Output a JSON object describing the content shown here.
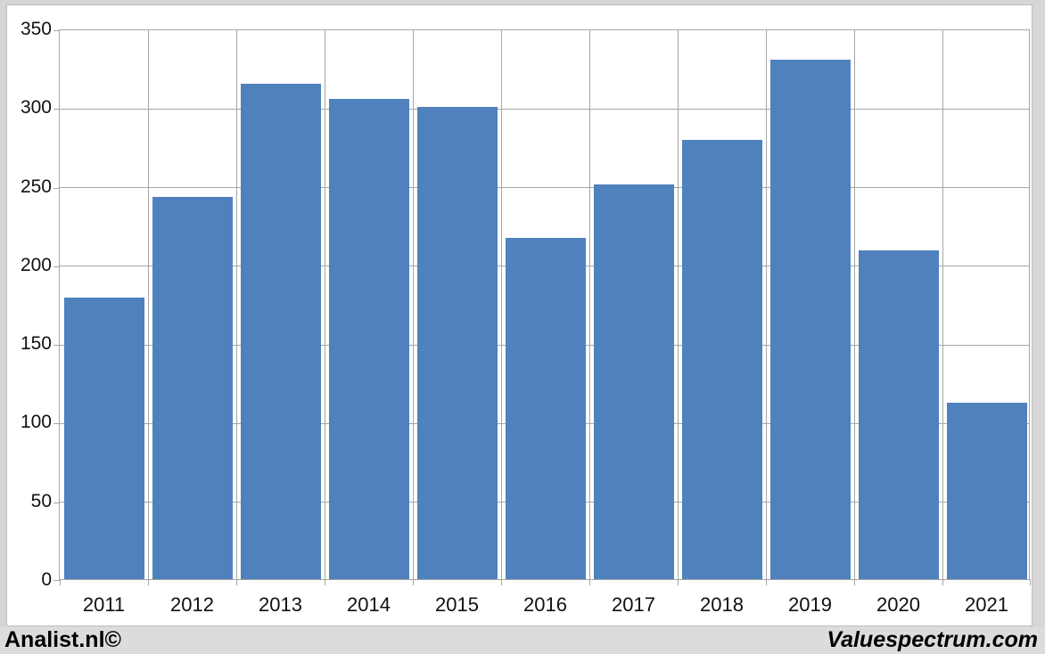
{
  "chart_data": {
    "type": "bar",
    "title": "",
    "xlabel": "",
    "ylabel": "",
    "categories": [
      "2011",
      "2012",
      "2013",
      "2014",
      "2015",
      "2016",
      "2017",
      "2018",
      "2019",
      "2020",
      "2021"
    ],
    "values": [
      179,
      243,
      315,
      305,
      300,
      217,
      251,
      279,
      330,
      209,
      112
    ],
    "ylim": [
      0,
      350
    ],
    "ytick_step": 50,
    "yticks": [
      0,
      50,
      100,
      150,
      200,
      250,
      300,
      350
    ],
    "grid": "on",
    "legend": "none",
    "bar_color": "#4f81bd",
    "gridline_color": "#a6a6a6",
    "plot_background": "#ffffff",
    "outer_background": "#d6d6d6"
  },
  "footer": {
    "left": "Analist.nl©",
    "right": "Valuespectrum.com"
  }
}
